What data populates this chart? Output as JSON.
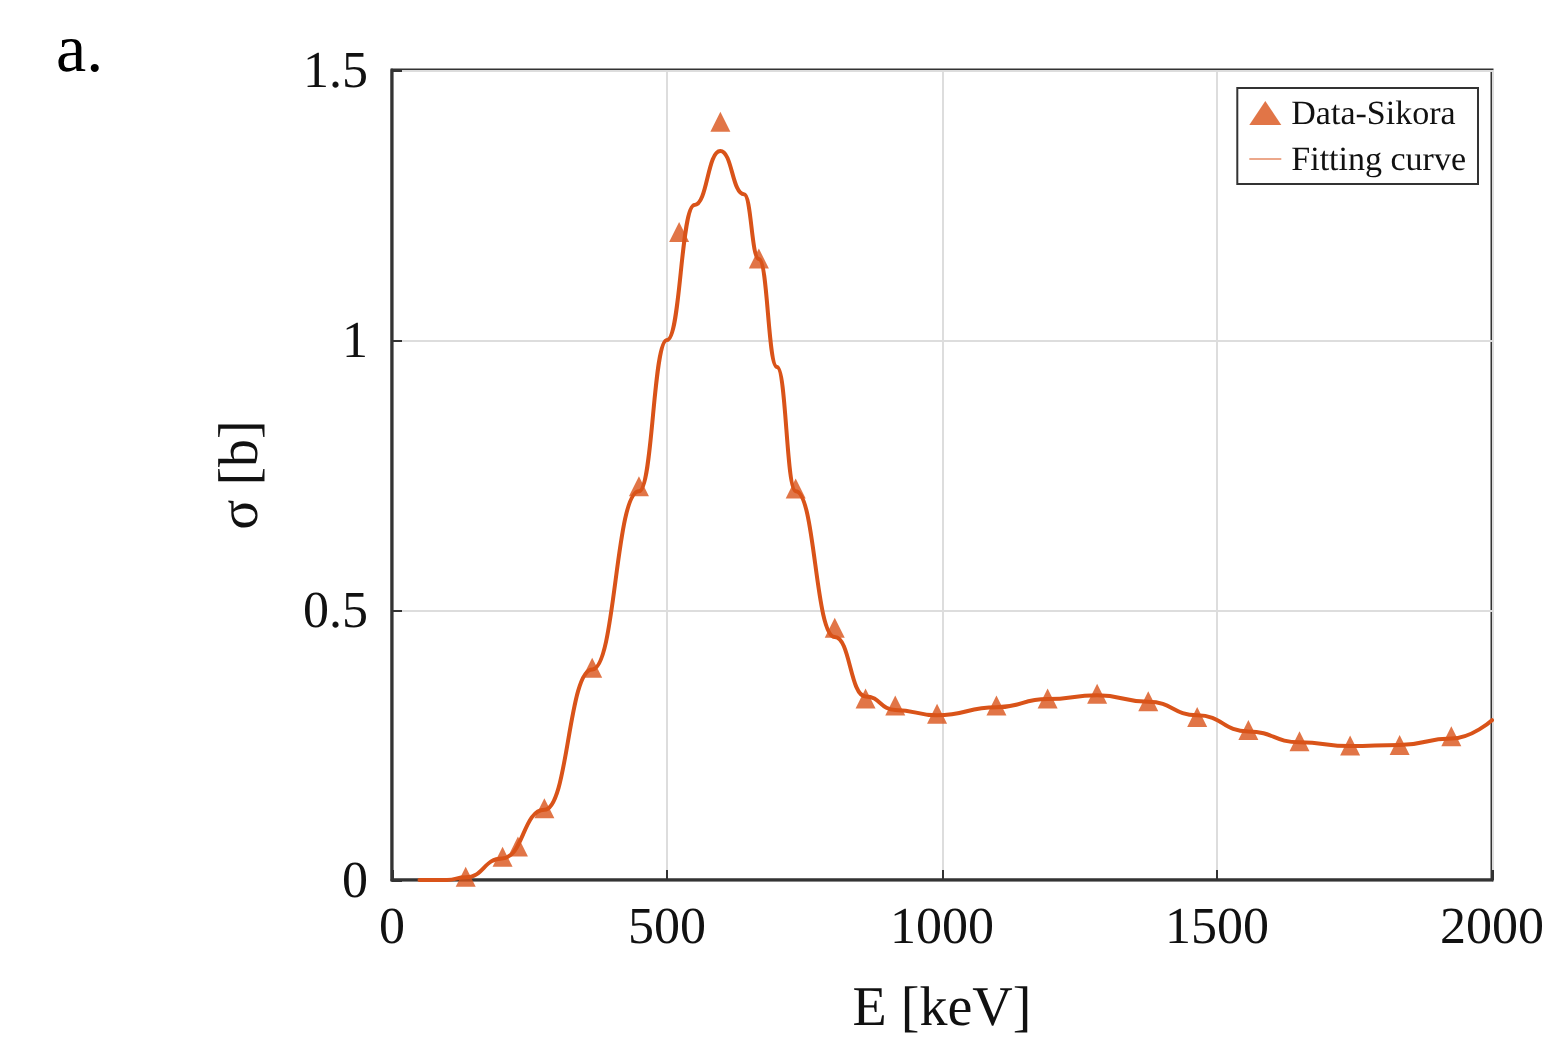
{
  "chart_data": {
    "type": "scatter",
    "xlabel": "E [keV]",
    "ylabel": "σ [b]",
    "annotations": [
      "a."
    ],
    "xlim": [
      0,
      2000
    ],
    "xticks": [
      0,
      500,
      1000,
      1500,
      2000
    ],
    "ylim": [
      0,
      1.5
    ],
    "yticks": [
      0,
      0.5,
      1,
      1.5
    ],
    "grid": true,
    "legend": "top right",
    "series": [
      {
        "name": "Data-Sikora",
        "marker": "triangle",
        "color": "#d95319",
        "x": [
          134,
          201,
          229,
          277,
          364,
          449,
          522,
          597,
          667,
          734,
          805,
          861,
          915,
          991,
          1099,
          1192,
          1282,
          1375,
          1464,
          1557,
          1650,
          1742,
          1832,
          1926
        ],
        "values": [
          0.006,
          0.043,
          0.062,
          0.133,
          0.393,
          0.729,
          1.2,
          1.404,
          1.151,
          0.725,
          0.467,
          0.336,
          0.323,
          0.308,
          0.323,
          0.336,
          0.345,
          0.331,
          0.302,
          0.278,
          0.257,
          0.249,
          0.25,
          0.266
        ]
      },
      {
        "name": "Fitting curve",
        "type": "line",
        "marker": "none",
        "color": "#d95319",
        "x": [
          50,
          100,
          134,
          200,
          277,
          364,
          449,
          500,
          550,
          597,
          640,
          667,
          700,
          734,
          805,
          861,
          915,
          991,
          1099,
          1192,
          1282,
          1375,
          1464,
          1557,
          1650,
          1742,
          1832,
          1926,
          2000
        ],
        "values": [
          0,
          0,
          0.005,
          0.04,
          0.13,
          0.39,
          0.72,
          1.0,
          1.25,
          1.35,
          1.27,
          1.15,
          0.95,
          0.72,
          0.45,
          0.34,
          0.315,
          0.305,
          0.32,
          0.335,
          0.342,
          0.33,
          0.305,
          0.275,
          0.255,
          0.248,
          0.25,
          0.262,
          0.296
        ]
      }
    ]
  }
}
